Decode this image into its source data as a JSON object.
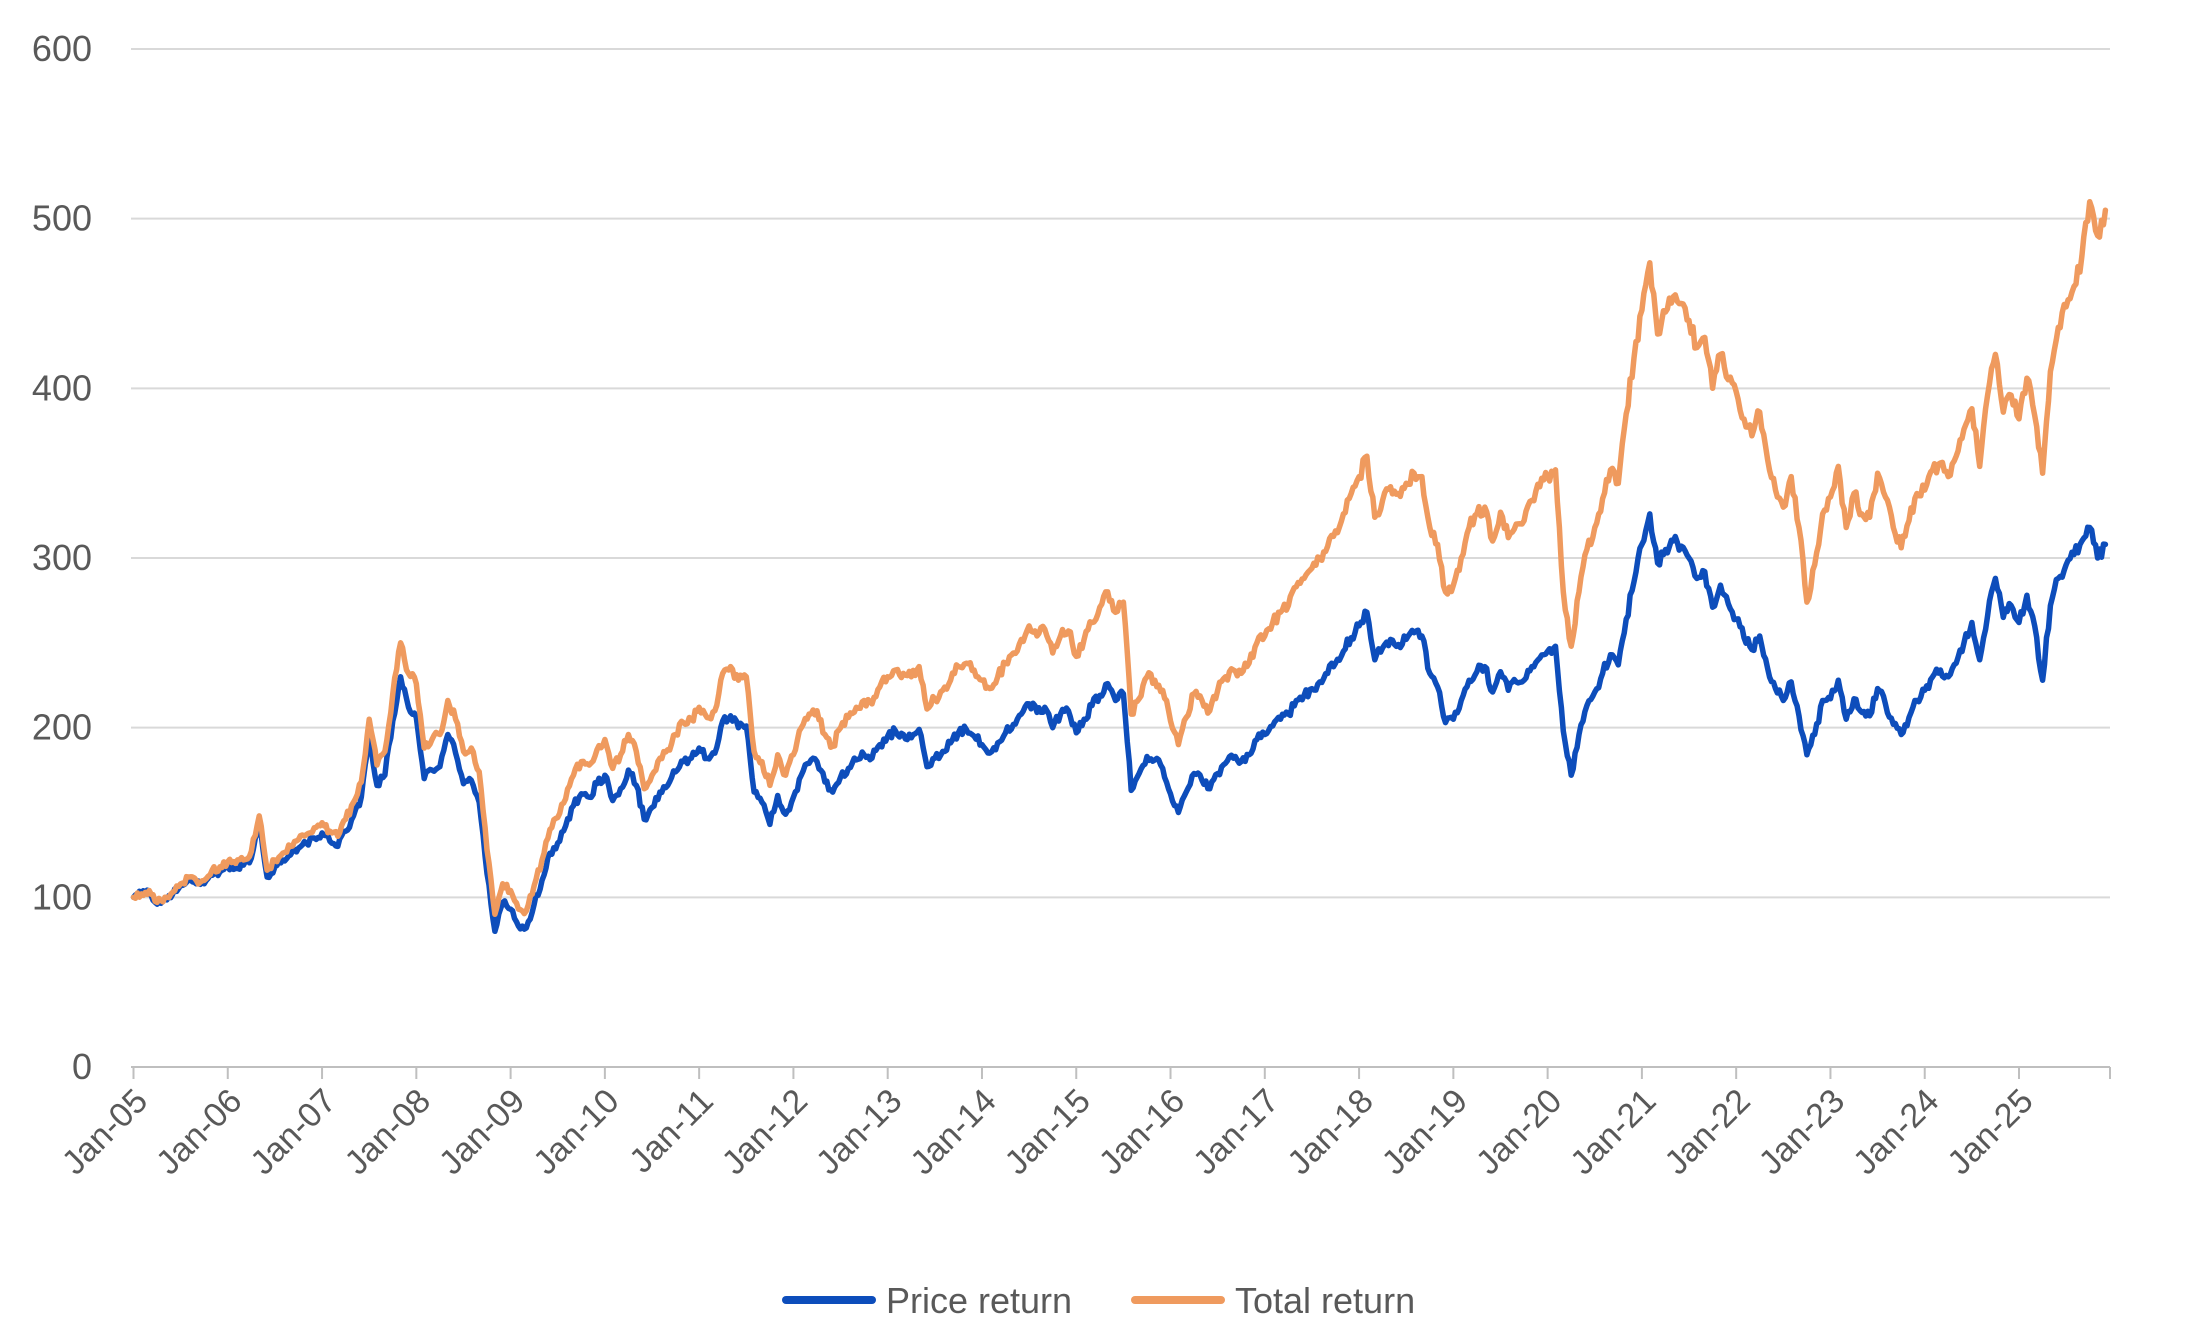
{
  "chart_data": {
    "type": "line",
    "title": "",
    "xlabel": "",
    "ylabel": "",
    "ylim": [
      0,
      600
    ],
    "y_ticks": [
      0,
      100,
      200,
      300,
      400,
      500,
      600
    ],
    "x_tick_labels": [
      "Jan-05",
      "Jan-06",
      "Jan-07",
      "Jan-08",
      "Jan-09",
      "Jan-10",
      "Jan-11",
      "Jan-12",
      "Jan-13",
      "Jan-14",
      "Jan-15",
      "Jan-16",
      "Jan-17",
      "Jan-18",
      "Jan-19",
      "Jan-20",
      "Jan-21",
      "Jan-22",
      "Jan-23",
      "Jan-24",
      "Jan-25"
    ],
    "x_unit": "monthly values from Jan-2005 to Dec-2025, index base Jan-2005 = 100",
    "grid": "horizontal only",
    "legend_position": "bottom-center",
    "colors": {
      "grid": "#D9D9D9",
      "axis": "#BFBFBF",
      "labels": "#595959",
      "price_return": "#0D4DBB",
      "total_return": "#EF9A5E"
    },
    "series": [
      {
        "name": "Price return",
        "color": "#0D4DBB",
        "monthly_values": [
          100,
          102,
          103,
          96,
          99,
          102,
          107,
          110,
          108,
          108,
          113,
          115,
          118,
          117,
          119,
          123,
          144,
          112,
          118,
          122,
          125,
          129,
          132,
          135,
          138,
          133,
          130,
          139,
          148,
          159,
          193,
          166,
          172,
          204,
          230,
          212,
          206,
          170,
          175,
          177,
          196,
          185,
          167,
          169,
          156,
          114,
          80,
          97,
          93,
          83,
          82,
          96,
          110,
          126,
          132,
          142,
          154,
          161,
          159,
          167,
          172,
          157,
          164,
          175,
          166,
          146,
          153,
          162,
          166,
          174,
          180,
          182,
          188,
          182,
          185,
          204,
          207,
          200,
          201,
          162,
          156,
          143,
          160,
          149,
          159,
          172,
          179,
          180,
          168,
          162,
          171,
          176,
          181,
          184,
          182,
          190,
          195,
          198,
          196,
          194,
          199,
          177,
          182,
          186,
          191,
          197,
          199,
          195,
          190,
          185,
          191,
          197,
          202,
          208,
          214,
          209,
          212,
          200,
          208,
          210,
          197,
          205,
          213,
          219,
          226,
          216,
          220,
          163,
          173,
          183,
          181,
          176,
          161,
          150,
          162,
          173,
          169,
          164,
          173,
          179,
          182,
          180,
          184,
          193,
          196,
          201,
          205,
          208,
          216,
          219,
          223,
          227,
          232,
          238,
          245,
          253,
          260,
          268,
          240,
          247,
          252,
          249,
          252,
          256,
          254,
          232,
          224,
          203,
          205,
          216,
          228,
          233,
          236,
          221,
          233,
          222,
          227,
          228,
          236,
          241,
          245,
          248,
          198,
          172,
          196,
          213,
          221,
          232,
          243,
          237,
          264,
          286,
          308,
          326,
          297,
          305,
          310,
          307,
          300,
          288,
          292,
          271,
          284,
          273,
          264,
          253,
          246,
          254,
          235,
          223,
          216,
          227,
          207,
          184,
          196,
          216,
          217,
          228,
          205,
          217,
          209,
          207,
          223,
          214,
          202,
          196,
          206,
          216,
          222,
          230,
          234,
          230,
          238,
          250,
          262,
          240,
          266,
          288,
          265,
          272,
          262,
          278,
          260,
          228,
          272,
          288,
          296,
          302,
          310,
          318,
          300,
          308
        ]
      },
      {
        "name": "Total return",
        "color": "#EF9A5E",
        "monthly_values": [
          100,
          102,
          104,
          97,
          100,
          103,
          108,
          112,
          110,
          110,
          116,
          118,
          121,
          120,
          122,
          127,
          148,
          116,
          122,
          126,
          130,
          134,
          137,
          141,
          144,
          139,
          136,
          146,
          156,
          168,
          205,
          178,
          186,
          220,
          250,
          232,
          226,
          188,
          193,
          196,
          216,
          205,
          186,
          188,
          174,
          128,
          90,
          108,
          104,
          93,
          92,
          107,
          122,
          140,
          147,
          158,
          172,
          180,
          178,
          187,
          193,
          176,
          184,
          196,
          186,
          164,
          172,
          182,
          187,
          196,
          203,
          205,
          212,
          206,
          210,
          232,
          236,
          228,
          230,
          186,
          180,
          166,
          184,
          172,
          184,
          200,
          208,
          210,
          196,
          189,
          200,
          206,
          212,
          216,
          214,
          224,
          230,
          234,
          232,
          230,
          236,
          211,
          217,
          222,
          228,
          236,
          238,
          234,
          228,
          223,
          230,
          238,
          244,
          252,
          260,
          254,
          258,
          244,
          254,
          257,
          242,
          252,
          262,
          271,
          280,
          268,
          274,
          208,
          217,
          230,
          228,
          222,
          204,
          190,
          206,
          220,
          216,
          210,
          222,
          230,
          234,
          232,
          238,
          250,
          254,
          262,
          268,
          272,
          283,
          288,
          294,
          300,
          307,
          316,
          326,
          338,
          348,
          360,
          324,
          334,
          342,
          338,
          344,
          350,
          348,
          318,
          308,
          280,
          284,
          300,
          318,
          326,
          330,
          310,
          327,
          312,
          320,
          322,
          334,
          342,
          348,
          352,
          280,
          248,
          280,
          305,
          318,
          335,
          352,
          344,
          385,
          418,
          446,
          474,
          432,
          445,
          454,
          450,
          440,
          424,
          430,
          400,
          420,
          405,
          398,
          382,
          372,
          386,
          358,
          340,
          330,
          348,
          318,
          274,
          296,
          326,
          336,
          354,
          318,
          338,
          326,
          324,
          350,
          336,
          318,
          306,
          322,
          338,
          340,
          352,
          356,
          348,
          360,
          376,
          388,
          354,
          396,
          420,
          386,
          396,
          382,
          406,
          384,
          350,
          410,
          436,
          448,
          460,
          478,
          510,
          490,
          505
        ]
      }
    ]
  }
}
